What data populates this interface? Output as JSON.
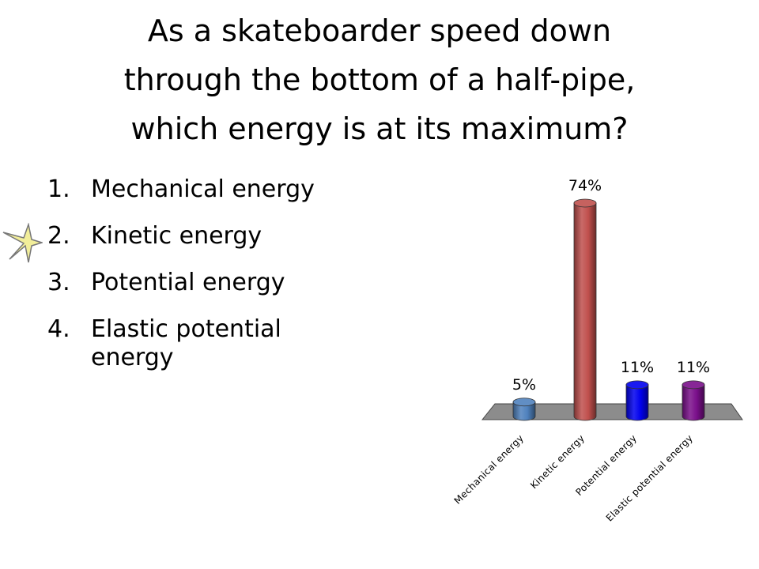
{
  "question": {
    "lines": [
      "As a skateboarder speed down",
      "through the bottom of a half-pipe,",
      "which energy is at its maximum?"
    ]
  },
  "choices": [
    {
      "number": "1.",
      "text": "Mechanical energy"
    },
    {
      "number": "2.",
      "text": "Kinetic energy",
      "correct": true
    },
    {
      "number": "3.",
      "text": "Potential energy"
    },
    {
      "number": "4.",
      "text": "Elastic potential energy"
    }
  ],
  "marker": {
    "icon": "star-icon",
    "color": "#f2ee9a"
  },
  "chart_data": {
    "type": "bar",
    "categories": [
      "Mechanical energy",
      "Kinetic energy",
      "Potential energy",
      "Elastic potential energy"
    ],
    "values": [
      5,
      74,
      11,
      11
    ],
    "labels": [
      "5%",
      "74%",
      "11%",
      "11%"
    ],
    "colors": [
      "#4f81bd",
      "#c0504d",
      "#0000ee",
      "#7a0f8a"
    ],
    "ylim": [
      0,
      74
    ],
    "floor_color": "#8c8c8c",
    "grid": false,
    "legend": "none"
  }
}
